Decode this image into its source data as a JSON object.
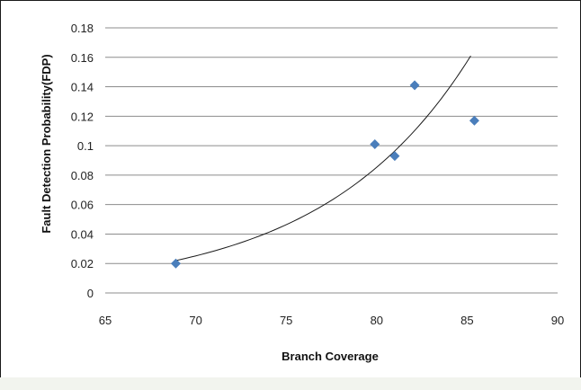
{
  "chart_data": {
    "type": "scatter",
    "title": "",
    "xlabel": "Branch Coverage",
    "ylabel": "Fault Detection Probability(FDP)",
    "xlim": [
      65,
      90
    ],
    "ylim": [
      0,
      0.18
    ],
    "x_ticks": [
      "65",
      "70",
      "75",
      "80",
      "85",
      "90"
    ],
    "y_ticks": [
      "0",
      "0.02",
      "0.04",
      "0.06",
      "0.08",
      "0.1",
      "0.12",
      "0.14",
      "0.16",
      "0.18"
    ],
    "grid": true,
    "legend": false,
    "marker": "diamond",
    "colors": {
      "marker": "#4a7ebb",
      "trendline": "#1a1a1a",
      "grid": "#8c8c8c"
    },
    "points": [
      {
        "x": 68.9,
        "y": 0.02
      },
      {
        "x": 79.9,
        "y": 0.101
      },
      {
        "x": 81.0,
        "y": 0.093
      },
      {
        "x": 82.1,
        "y": 0.141
      },
      {
        "x": 85.4,
        "y": 0.117
      }
    ],
    "trendline": {
      "type": "exponential",
      "x_range": [
        68.9,
        85.2
      ],
      "y_at_start": 0.022,
      "y_at_end": 0.161
    }
  }
}
